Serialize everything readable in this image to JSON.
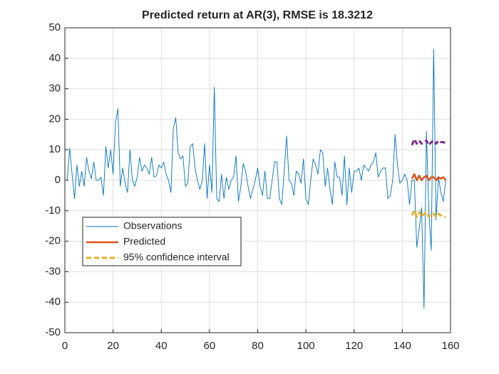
{
  "chart_data": {
    "type": "line",
    "title": "Predicted return at AR(3), RMSE is 18.3212",
    "xlim": [
      0,
      160
    ],
    "xticks": [
      0,
      20,
      40,
      60,
      80,
      100,
      120,
      140,
      160
    ],
    "ylim": [
      -50,
      50
    ],
    "yticks": [
      -50,
      -40,
      -30,
      -20,
      -10,
      0,
      10,
      20,
      30,
      40,
      50
    ],
    "grid": true,
    "legend": "lower-left",
    "series": [
      {
        "name": "Observations",
        "color": "#0072bd",
        "x": [
          1,
          2,
          3,
          4,
          5,
          6,
          7,
          8,
          9,
          10,
          11,
          12,
          13,
          14,
          15,
          16,
          17,
          18,
          19,
          20,
          21,
          22,
          23,
          24,
          25,
          26,
          27,
          28,
          29,
          30,
          31,
          32,
          33,
          34,
          35,
          36,
          37,
          38,
          39,
          40,
          41,
          42,
          43,
          44,
          45,
          46,
          47,
          48,
          49,
          50,
          51,
          52,
          53,
          54,
          55,
          56,
          57,
          58,
          59,
          60,
          61,
          62,
          63,
          64,
          65,
          66,
          67,
          68,
          69,
          70,
          71,
          72,
          73,
          74,
          75,
          76,
          77,
          78,
          79,
          80,
          81,
          82,
          83,
          84,
          85,
          86,
          87,
          88,
          89,
          90,
          91,
          92,
          93,
          94,
          95,
          96,
          97,
          98,
          99,
          100,
          101,
          102,
          103,
          104,
          105,
          106,
          107,
          108,
          109,
          110,
          111,
          112,
          113,
          114,
          115,
          116,
          117,
          118,
          119,
          120,
          121,
          122,
          123,
          124,
          125,
          126,
          127,
          128,
          129,
          130,
          131,
          132,
          133,
          134,
          135,
          136,
          137,
          138,
          139,
          140,
          141,
          142,
          143,
          144,
          145,
          146,
          147,
          148,
          149,
          150,
          151,
          152,
          153,
          154,
          155,
          156,
          157,
          158
        ],
        "values": [
          0,
          10.5,
          2,
          -6,
          5,
          -2,
          3,
          -2,
          7.5,
          3,
          0.5,
          6,
          0,
          0,
          1,
          -5,
          11,
          4,
          10,
          2,
          19,
          23.5,
          -2,
          4,
          -1,
          -4,
          10,
          0,
          -2,
          1,
          7.5,
          3,
          5,
          4,
          2,
          7.5,
          1,
          1.5,
          5,
          4,
          6,
          2,
          0,
          -4,
          17,
          20.5,
          9,
          7,
          8,
          -2,
          -1,
          11,
          12,
          4,
          0,
          -3,
          0,
          12,
          -6,
          5,
          -4,
          30.5,
          -6,
          -7,
          2,
          -6,
          1,
          -3,
          0,
          1,
          8,
          -7,
          -2,
          5.5,
          3,
          -2,
          -6,
          -3,
          0,
          4,
          -2,
          -5,
          3,
          -6,
          -6,
          0,
          6,
          6,
          -6,
          -8,
          3,
          14.5,
          0,
          -1,
          -5,
          3,
          2,
          -1,
          7,
          -6,
          -8,
          0,
          7,
          5,
          2,
          10,
          9,
          -2,
          4,
          -3,
          -8,
          6,
          1,
          1,
          -5,
          8,
          -8,
          4,
          -4,
          3,
          3,
          4,
          0,
          5,
          4,
          3,
          5,
          6,
          9,
          1,
          3,
          4,
          4,
          -6,
          -5,
          0,
          15,
          5,
          -1,
          0,
          2,
          0,
          -8,
          0,
          0,
          -22,
          -16,
          -9,
          -42,
          16,
          -10,
          -23,
          43,
          -13,
          1,
          -4,
          -7,
          0
        ]
      },
      {
        "name": "Predicted",
        "color": "#d95319",
        "x": [
          144,
          145,
          146,
          147,
          148,
          149,
          150,
          151,
          152,
          153,
          154,
          155,
          156,
          157,
          158
        ],
        "values": [
          0.5,
          2,
          0,
          1.5,
          0,
          1,
          1.5,
          0,
          1,
          1,
          0,
          1,
          0.5,
          1,
          0
        ]
      },
      {
        "name": "95% confidence interval",
        "color": "#edb120",
        "dashed": true,
        "x": [
          144,
          145,
          146,
          147,
          148,
          149,
          150,
          151,
          152,
          153,
          154,
          155,
          156,
          157,
          158
        ],
        "values": [
          -11.5,
          -10,
          -12,
          -10.5,
          -12,
          -11,
          -10.5,
          -12,
          -11,
          -11,
          -12,
          -11,
          -11.5,
          -12,
          -12
        ]
      },
      {
        "color": "#7e2f8e",
        "dashed": true,
        "x": [
          144,
          145,
          146,
          147,
          148,
          149,
          150,
          151,
          152,
          153,
          154,
          155,
          156,
          157,
          158
        ],
        "values": [
          11.5,
          13.5,
          12,
          13,
          12,
          12.5,
          13,
          11.5,
          12.5,
          13,
          12,
          13,
          12.5,
          12.5,
          12
        ]
      }
    ]
  }
}
